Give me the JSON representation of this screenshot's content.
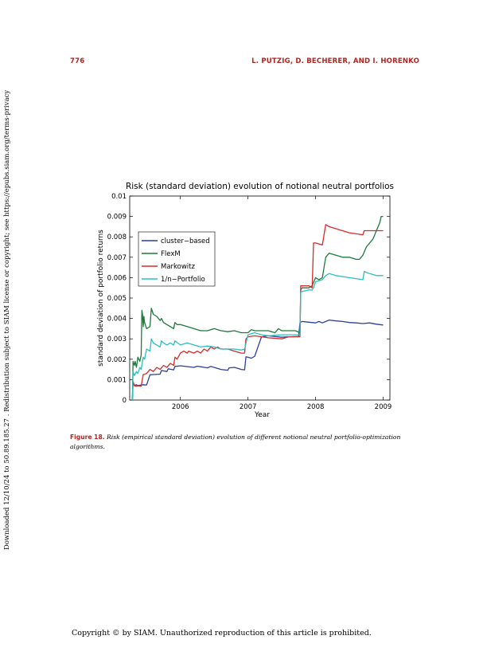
{
  "header": {
    "page_number": "776",
    "running_head": "L. PUTZIG, D. BECHERER, AND I. HORENKO"
  },
  "side_note": "Downloaded 12/10/24 to 50.89.185.27 . Redistribution subject to SIAM license or copyright; see https://epubs.siam.org/terms-privacy",
  "caption": {
    "label": "Figure 18.",
    "text": "Risk (empirical standard deviation) evolution of different notional neutral portfolio-optimization algorithms."
  },
  "footer": "Copyright © by SIAM. Unauthorized reproduction of this article is prohibited.",
  "colors": {
    "accent": "#b3241f",
    "cluster": "#2b3f9e",
    "flexm": "#1e7a3c",
    "markowitz": "#d72a2a",
    "one_over_n": "#2cbfbf"
  },
  "chart_data": {
    "type": "line",
    "title": "Risk (standard deviation) evolution of notional neutral portfolios",
    "xlabel": "Year",
    "ylabel": "standard deviation of portfolio returns",
    "xlim": [
      2005.25,
      2009.1
    ],
    "ylim": [
      0,
      0.01
    ],
    "xticks": [
      2006,
      2007,
      2008,
      2009
    ],
    "xtick_labels": [
      "2006",
      "2007",
      "2008",
      "2009"
    ],
    "yticks": [
      0,
      0.001,
      0.002,
      0.003,
      0.004,
      0.005,
      0.006,
      0.007,
      0.008,
      0.009,
      0.01
    ],
    "ytick_labels": [
      "0",
      "0.001",
      "0.002",
      "0.003",
      "0.004",
      "0.005",
      "0.006",
      "0.007",
      "0.008",
      "0.009",
      "0.01"
    ],
    "grid": false,
    "legend_position": "upper-left",
    "series": [
      {
        "name": "cluster−based",
        "color": "#2b3f9e",
        "x": [
          2005.29,
          2005.3,
          2005.31,
          2005.32,
          2005.35,
          2005.37,
          2005.38,
          2005.45,
          2005.5,
          2005.55,
          2005.6,
          2005.7,
          2005.72,
          2005.8,
          2005.82,
          2005.9,
          2005.92,
          2006.0,
          2006.2,
          2006.25,
          2006.4,
          2006.45,
          2006.6,
          2006.7,
          2006.72,
          2006.8,
          2006.85,
          2006.9,
          2006.95,
          2006.97,
          2007.0,
          2007.05,
          2007.1,
          2007.2,
          2007.3,
          2007.5,
          2007.6,
          2007.75,
          2007.77,
          2007.8,
          2008.0,
          2008.05,
          2008.1,
          2008.2,
          2008.3,
          2008.4,
          2008.5,
          2008.6,
          2008.7,
          2008.8,
          2008.9,
          2009.0
        ],
        "y": [
          0.0,
          0.0009,
          0.0008,
          0.00072,
          0.00075,
          0.0007,
          0.00072,
          0.00075,
          0.00074,
          0.00124,
          0.00125,
          0.00127,
          0.00145,
          0.0014,
          0.00153,
          0.00148,
          0.00165,
          0.00168,
          0.0016,
          0.00166,
          0.00158,
          0.00165,
          0.0015,
          0.00146,
          0.00158,
          0.0016,
          0.00155,
          0.0015,
          0.00148,
          0.00212,
          0.0021,
          0.00205,
          0.00215,
          0.0031,
          0.00315,
          0.00308,
          0.0031,
          0.00312,
          0.0038,
          0.00385,
          0.00378,
          0.00385,
          0.00378,
          0.00392,
          0.00388,
          0.00385,
          0.0038,
          0.00378,
          0.00375,
          0.00378,
          0.00372,
          0.00368
        ]
      },
      {
        "name": "FlexM",
        "color": "#1e7a3c",
        "x": [
          2005.29,
          2005.3,
          2005.32,
          2005.33,
          2005.35,
          2005.37,
          2005.4,
          2005.42,
          2005.43,
          2005.44,
          2005.45,
          2005.46,
          2005.47,
          2005.5,
          2005.55,
          2005.57,
          2005.6,
          2005.65,
          2005.7,
          2005.72,
          2005.75,
          2005.8,
          2005.85,
          2005.9,
          2005.92,
          2005.95,
          2006.0,
          2006.1,
          2006.2,
          2006.3,
          2006.4,
          2006.5,
          2006.6,
          2006.7,
          2006.8,
          2006.85,
          2006.9,
          2006.95,
          2007.0,
          2007.05,
          2007.1,
          2007.2,
          2007.3,
          2007.4,
          2007.45,
          2007.5,
          2007.6,
          2007.7,
          2007.77,
          2007.78,
          2007.8,
          2007.9,
          2007.95,
          2008.0,
          2008.05,
          2008.1,
          2008.15,
          2008.2,
          2008.3,
          2008.4,
          2008.5,
          2008.6,
          2008.65,
          2008.7,
          2008.75,
          2008.8,
          2008.85,
          2008.9,
          2008.95,
          2008.97,
          2009.0
        ],
        "y": [
          0.0,
          0.0019,
          0.0017,
          0.0019,
          0.0016,
          0.0021,
          0.0019,
          0.0022,
          0.0044,
          0.0042,
          0.0036,
          0.0041,
          0.0038,
          0.0035,
          0.0036,
          0.0045,
          0.0042,
          0.0041,
          0.0039,
          0.004,
          0.0038,
          0.0037,
          0.0036,
          0.0035,
          0.0038,
          0.0037,
          0.0037,
          0.0036,
          0.0035,
          0.0034,
          0.0034,
          0.0035,
          0.0034,
          0.00335,
          0.0034,
          0.00335,
          0.0033,
          0.0033,
          0.0033,
          0.00345,
          0.0034,
          0.0034,
          0.0034,
          0.0033,
          0.0035,
          0.0034,
          0.0034,
          0.0034,
          0.0033,
          0.0054,
          0.0055,
          0.0055,
          0.0056,
          0.006,
          0.0059,
          0.006,
          0.007,
          0.0072,
          0.0071,
          0.007,
          0.007,
          0.0069,
          0.0069,
          0.0071,
          0.0075,
          0.0077,
          0.0079,
          0.0083,
          0.0087,
          0.009,
          0.009
        ]
      },
      {
        "name": "Markowitz",
        "color": "#d72a2a",
        "x": [
          2005.29,
          2005.3,
          2005.32,
          2005.35,
          2005.38,
          2005.42,
          2005.45,
          2005.5,
          2005.55,
          2005.6,
          2005.65,
          2005.7,
          2005.75,
          2005.8,
          2005.85,
          2005.9,
          2005.92,
          2005.95,
          2006.0,
          2006.05,
          2006.1,
          2006.12,
          2006.2,
          2006.25,
          2006.3,
          2006.35,
          2006.4,
          2006.45,
          2006.5,
          2006.55,
          2006.6,
          2006.7,
          2006.8,
          2006.9,
          2006.95,
          2006.97,
          2007.0,
          2007.1,
          2007.2,
          2007.3,
          2007.5,
          2007.6,
          2007.7,
          2007.77,
          2007.78,
          2007.9,
          2007.95,
          2007.97,
          2008.0,
          2008.1,
          2008.15,
          2008.2,
          2008.3,
          2008.5,
          2008.7,
          2008.72,
          2008.8,
          2008.9,
          2009.0
        ],
        "y": [
          0.0,
          0.0009,
          0.0007,
          0.00068,
          0.0007,
          0.00068,
          0.00125,
          0.0013,
          0.0015,
          0.0014,
          0.0016,
          0.0015,
          0.0017,
          0.0016,
          0.0018,
          0.0017,
          0.0021,
          0.002,
          0.0023,
          0.0024,
          0.0023,
          0.0024,
          0.0023,
          0.0024,
          0.0023,
          0.0025,
          0.0024,
          0.0026,
          0.0025,
          0.0026,
          0.0025,
          0.0025,
          0.0024,
          0.0023,
          0.0023,
          0.003,
          0.0031,
          0.00315,
          0.0031,
          0.00305,
          0.003,
          0.0031,
          0.0031,
          0.0031,
          0.0056,
          0.0056,
          0.0055,
          0.0077,
          0.0077,
          0.0076,
          0.0086,
          0.0085,
          0.0084,
          0.0082,
          0.0081,
          0.0083,
          0.0083,
          0.0083,
          0.0083
        ]
      },
      {
        "name": "1/n−Portfolio",
        "color": "#2cbfbf",
        "x": [
          2005.29,
          2005.3,
          2005.32,
          2005.35,
          2005.37,
          2005.4,
          2005.42,
          2005.45,
          2005.47,
          2005.5,
          2005.55,
          2005.57,
          2005.6,
          2005.65,
          2005.7,
          2005.72,
          2005.75,
          2005.8,
          2005.85,
          2005.9,
          2005.92,
          2006.0,
          2006.1,
          2006.2,
          2006.3,
          2006.4,
          2006.5,
          2006.6,
          2006.7,
          2006.8,
          2006.9,
          2006.95,
          2007.0,
          2007.1,
          2007.2,
          2007.3,
          2007.5,
          2007.7,
          2007.77,
          2007.78,
          2007.9,
          2007.95,
          2007.97,
          2008.0,
          2008.1,
          2008.15,
          2008.2,
          2008.3,
          2008.5,
          2008.7,
          2008.72,
          2008.8,
          2008.9,
          2009.0
        ],
        "y": [
          0.0,
          0.0014,
          0.0012,
          0.0014,
          0.0013,
          0.0016,
          0.0015,
          0.0021,
          0.002,
          0.0025,
          0.0024,
          0.003,
          0.0028,
          0.0027,
          0.0026,
          0.0029,
          0.0028,
          0.0027,
          0.0028,
          0.0027,
          0.0029,
          0.0027,
          0.0028,
          0.0027,
          0.0026,
          0.00265,
          0.0026,
          0.0025,
          0.0025,
          0.0025,
          0.00245,
          0.0025,
          0.0032,
          0.0033,
          0.0032,
          0.00315,
          0.0032,
          0.0032,
          0.0032,
          0.0053,
          0.0054,
          0.0054,
          0.0055,
          0.0058,
          0.0059,
          0.0061,
          0.0062,
          0.0061,
          0.006,
          0.0059,
          0.0063,
          0.0062,
          0.0061,
          0.0061
        ]
      }
    ]
  }
}
